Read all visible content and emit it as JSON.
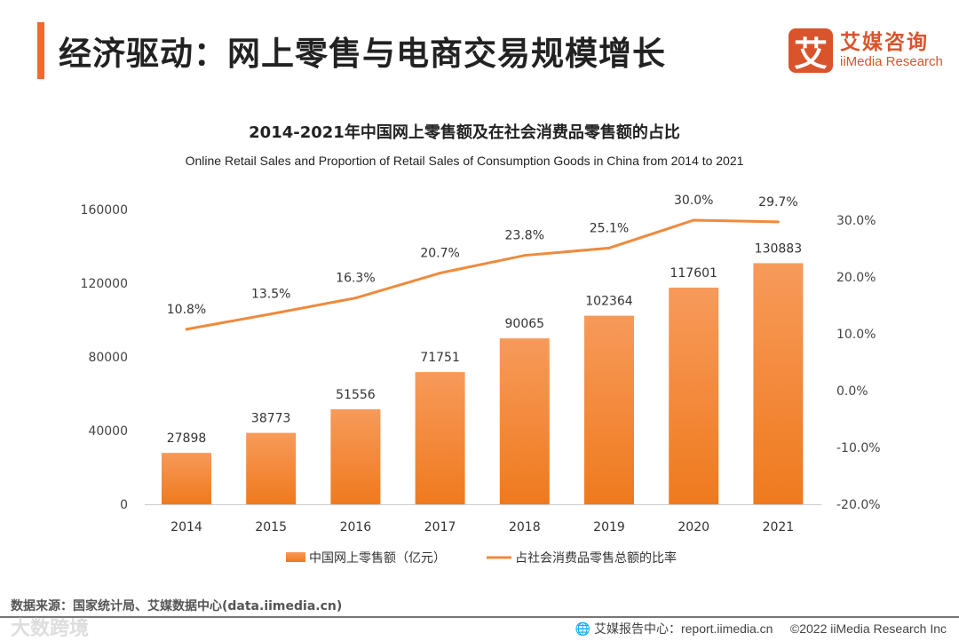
{
  "header": {
    "title": "经济驱动：网上零售与电商交易规模增长",
    "logo_mark": "艾",
    "logo_cn": "艾媒咨询",
    "logo_en": "iiMedia Research"
  },
  "chart_data": {
    "type": "bar+line",
    "title": "2014-2021年中国网上零售额及在社会消费品零售额的占比",
    "subtitle": "Online Retail Sales and Proportion of Retail Sales of Consumption Goods in China from 2014 to 2021",
    "categories": [
      "2014",
      "2015",
      "2016",
      "2017",
      "2018",
      "2019",
      "2020",
      "2021"
    ],
    "series": [
      {
        "name": "中国网上零售额（亿元）",
        "type": "bar",
        "axis": "left",
        "values": [
          27898,
          38773,
          51556,
          71751,
          90065,
          102364,
          117601,
          130883
        ]
      },
      {
        "name": "占社会消费品零售总额的比率",
        "type": "line",
        "axis": "right",
        "values": [
          10.8,
          13.5,
          16.3,
          20.7,
          23.8,
          25.1,
          30.0,
          29.7
        ],
        "labels": [
          "10.8%",
          "13.5%",
          "16.3%",
          "20.7%",
          "23.8%",
          "25.1%",
          "30.0%",
          "29.7%"
        ]
      }
    ],
    "left_axis": {
      "ylim": [
        0,
        160000
      ],
      "ticks": [
        "0",
        "40000",
        "80000",
        "120000",
        "160000"
      ]
    },
    "right_axis": {
      "ylim": [
        -20,
        30
      ],
      "ticks": [
        "-20.0%",
        "-10.0%",
        "0.0%",
        "10.0%",
        "20.0%",
        "30.0%"
      ]
    },
    "legend_position": "bottom",
    "colors": {
      "bar_top": "#f79a5a",
      "bar_bottom": "#ef7a1e",
      "line": "#f08a3c"
    }
  },
  "footer": {
    "source": "数据来源：国家统计局、艾媒数据中心(data.iimedia.cn)",
    "report": "艾媒报告中心：report.iimedia.cn",
    "copyright": "©2022  iiMedia Research  Inc",
    "watermark": "大数跨境"
  }
}
